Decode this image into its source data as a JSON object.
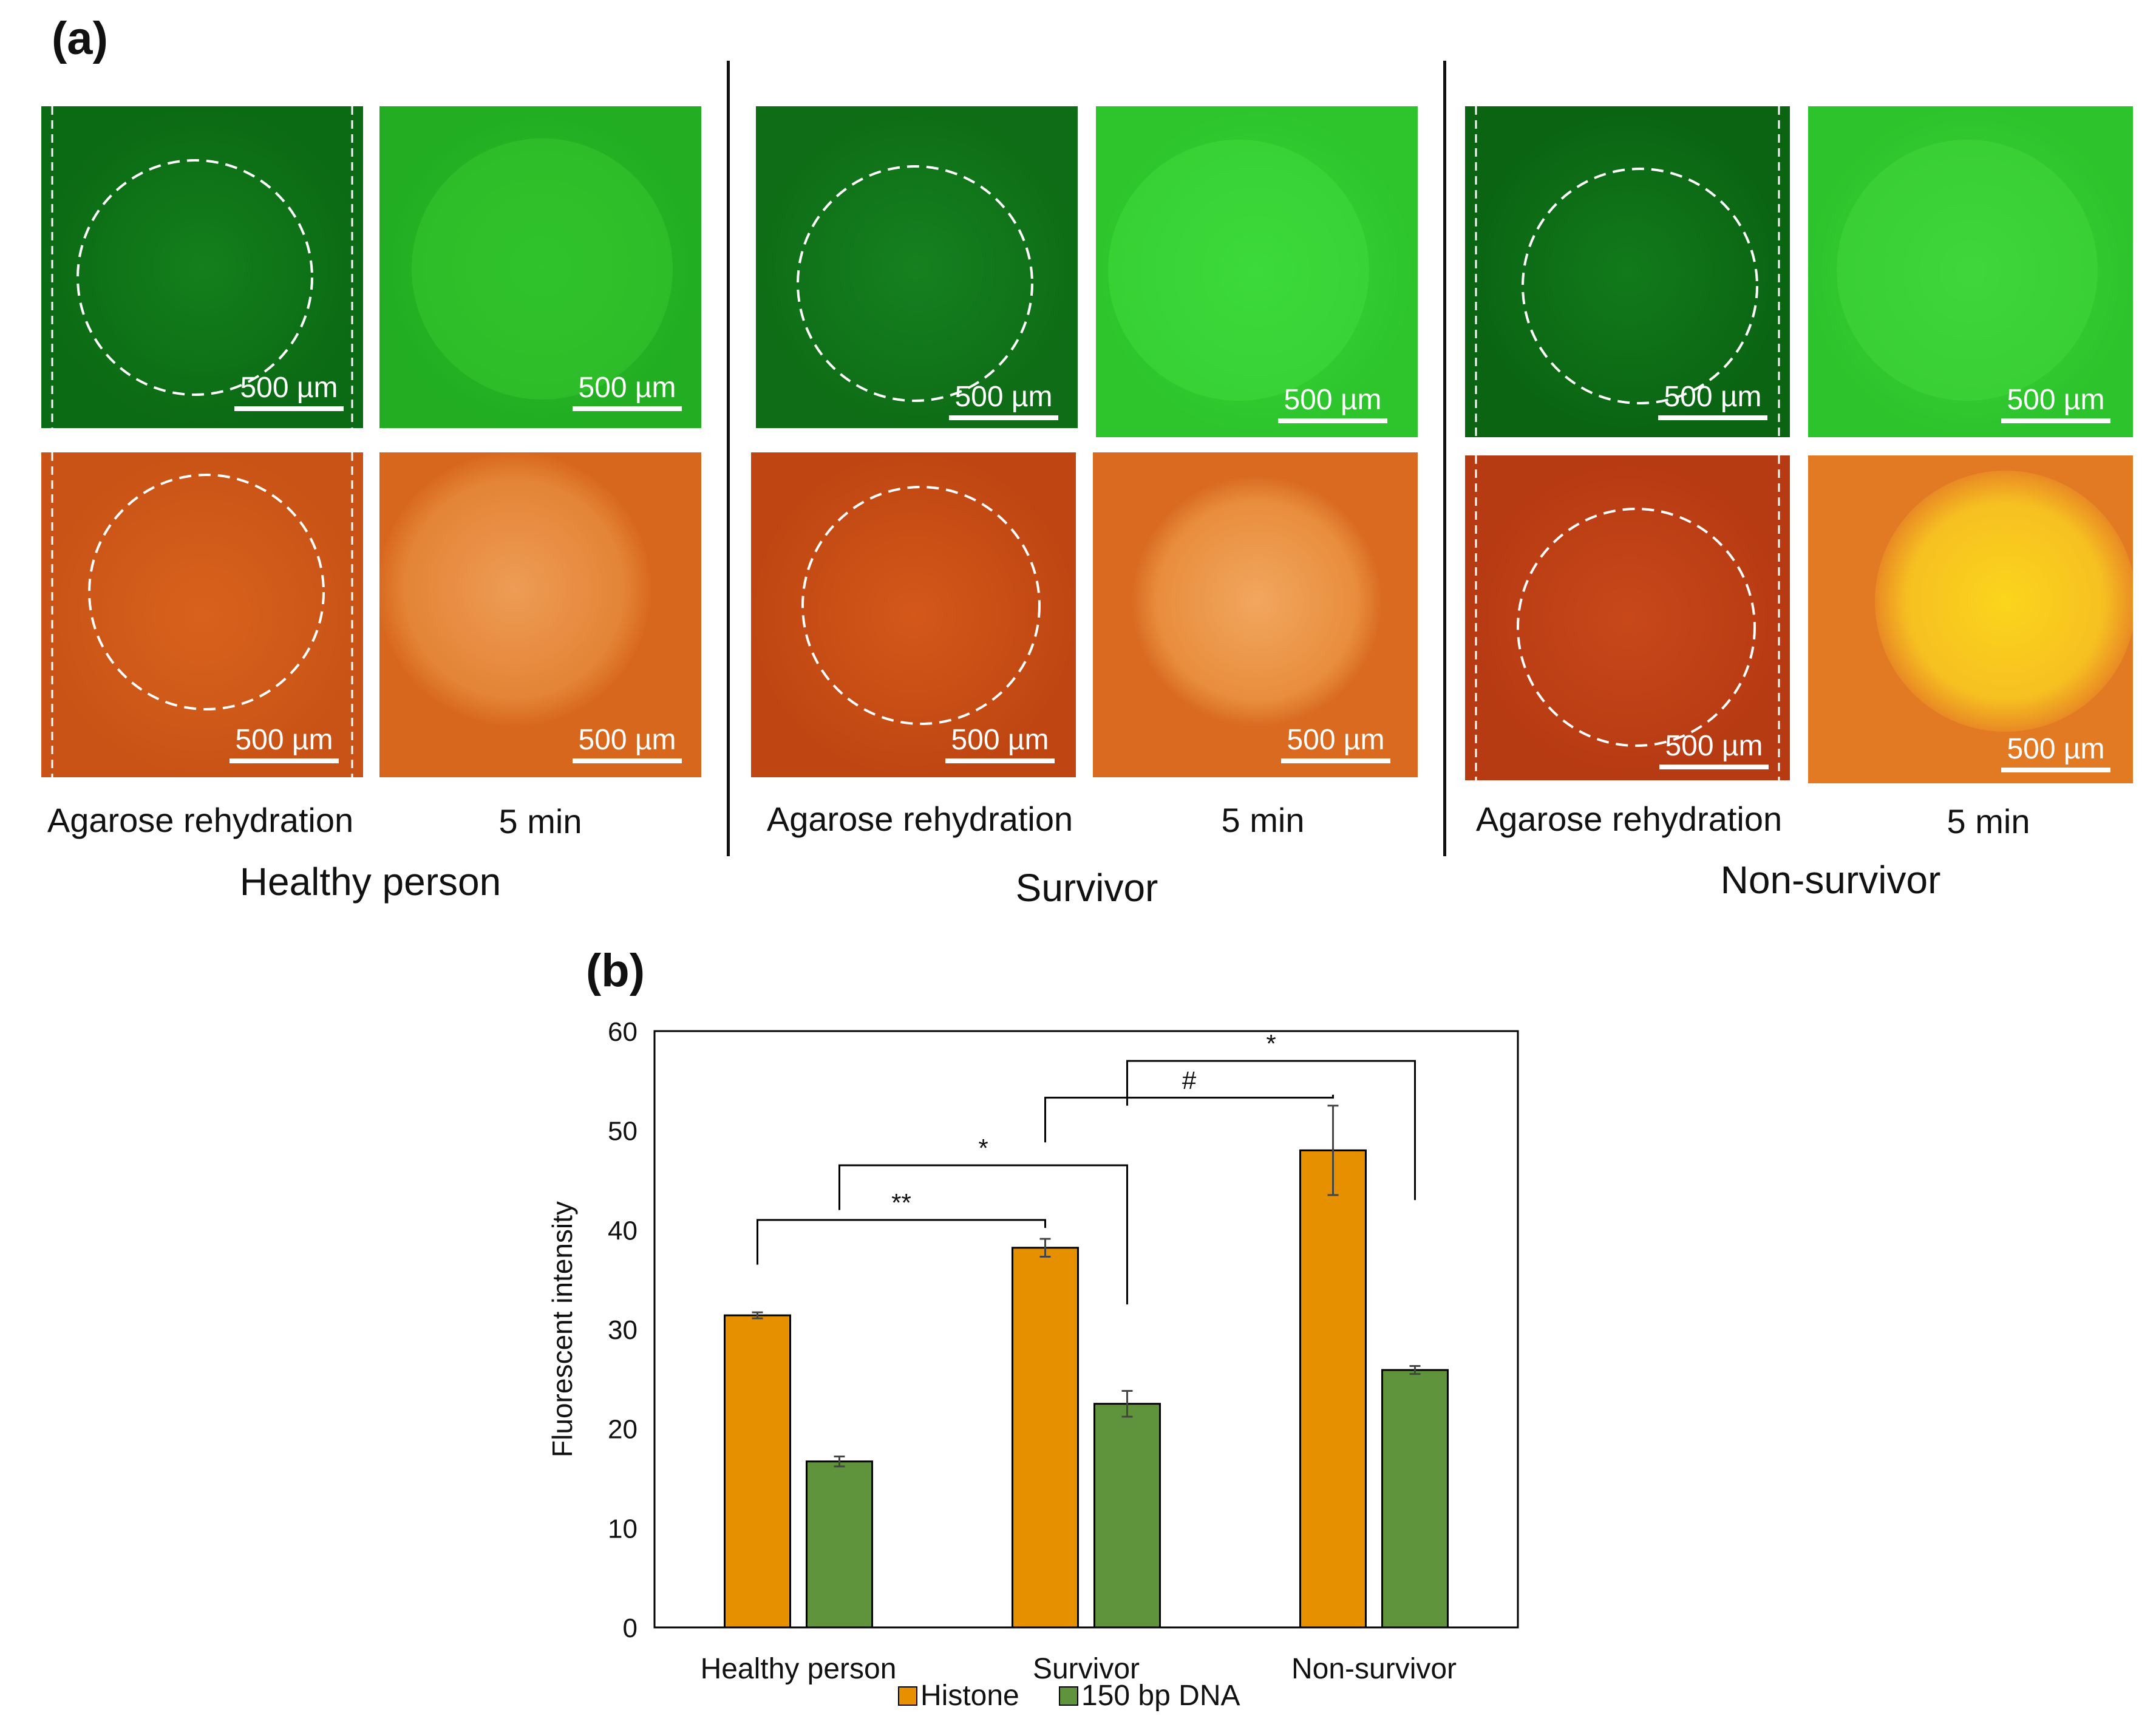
{
  "panel_a": {
    "label": "(a)",
    "scale_bar_text": "500 µm",
    "groups": [
      {
        "name": "Healthy person",
        "captions": [
          "Agarose rehydration",
          "5 min"
        ]
      },
      {
        "name": "Survivor",
        "captions": [
          "Agarose rehydration",
          "5 min"
        ]
      },
      {
        "name": "Non-survivor",
        "captions": [
          "Agarose rehydration",
          "5 min"
        ]
      }
    ],
    "colors": {
      "green_dark": "#0f7d18",
      "green_light": "#2fc92a",
      "orange_dark": "#c64a12",
      "orange_mid": "#e17a2c",
      "yellow_bright": "#f7c31d"
    }
  },
  "panel_b": {
    "label": "(b)"
  },
  "chart_data": {
    "type": "bar",
    "categories": [
      "Healthy person",
      "Survivor",
      "Non-survivor"
    ],
    "series": [
      {
        "name": "Histone",
        "color": "#e69000",
        "values": [
          31.4,
          38.2,
          48.0
        ],
        "errors": [
          0.3,
          0.9,
          4.5
        ]
      },
      {
        "name": "150 bp DNA",
        "color": "#5f943c",
        "values": [
          16.7,
          22.5,
          25.9
        ],
        "errors": [
          0.5,
          1.3,
          0.4
        ]
      }
    ],
    "ylabel": "Fluorescent intensity",
    "xlabel": "",
    "ylim": [
      0,
      60
    ],
    "yticks": [
      0,
      10,
      20,
      30,
      40,
      50,
      60
    ],
    "grid": false,
    "legend_position": "bottom",
    "significance": [
      {
        "from": [
          0,
          0
        ],
        "to": [
          1,
          0
        ],
        "label": "**"
      },
      {
        "from": [
          0,
          1
        ],
        "to": [
          1,
          1
        ],
        "label": "*"
      },
      {
        "from": [
          1,
          0
        ],
        "to": [
          2,
          0
        ],
        "label": "#"
      },
      {
        "from": [
          1,
          1
        ],
        "to": [
          2,
          1
        ],
        "label": "*"
      }
    ]
  }
}
